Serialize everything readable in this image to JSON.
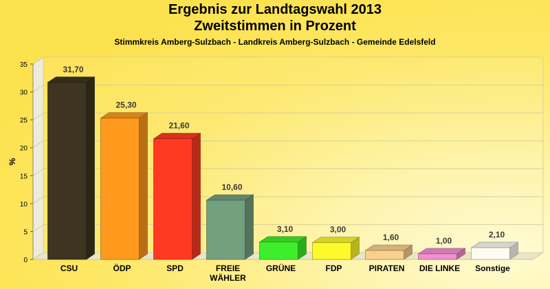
{
  "chart_data": {
    "type": "bar",
    "title": "Ergebnis zur Landtagswahl 2013",
    "subtitle_line": "Zweitstimmen in Prozent",
    "caption": "Stimmkreis Amberg-Sulzbach - Landkreis Amberg-Sulzbach - Gemeinde Edelsfeld",
    "ylabel": "%",
    "xlabel": "",
    "ylim": [
      0,
      35
    ],
    "yticks": [
      "0",
      "5",
      "10",
      "15",
      "20",
      "25",
      "30",
      "35"
    ],
    "grid": true,
    "categories": [
      [
        "CSU"
      ],
      [
        "ÖDP"
      ],
      [
        "SPD"
      ],
      [
        "FREIE",
        "WÄHLER"
      ],
      [
        "GRÜNE"
      ],
      [
        "FDP"
      ],
      [
        "PIRATEN"
      ],
      [
        "DIE LINKE"
      ],
      [
        "Sonstige"
      ]
    ],
    "values": [
      31.7,
      25.3,
      21.6,
      10.6,
      3.1,
      3.0,
      1.6,
      1.0,
      2.1
    ],
    "value_labels": [
      "31,70",
      "25,30",
      "21,60",
      "10,60",
      "3,10",
      "3,00",
      "1,60",
      "1,00",
      "2,10"
    ],
    "colors": [
      "#3d3520",
      "#ff9a1e",
      "#ff3a22",
      "#73a07e",
      "#3eee2a",
      "#fdf92b",
      "#fbcf8c",
      "#f38fd0",
      "#fefcf0"
    ]
  }
}
